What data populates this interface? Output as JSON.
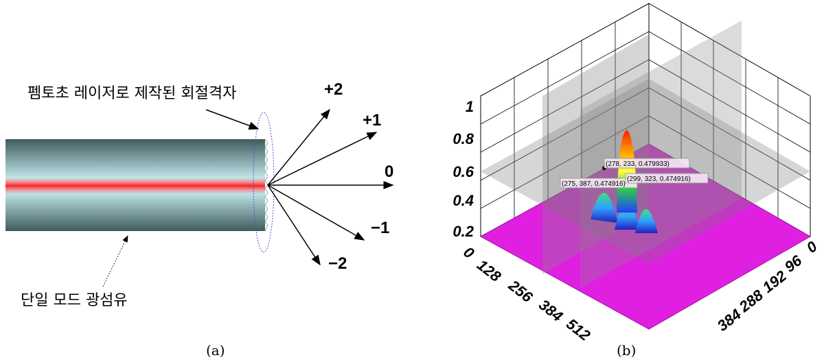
{
  "panel_a": {
    "grating_label": "펨토초 레이저로 제작된 회절격자",
    "fiber_label": "단일 모드 광섬유",
    "orders": [
      "+2",
      "+1",
      "0",
      "−1",
      "−2"
    ],
    "caption": "(a)"
  },
  "panel_b": {
    "z_ticks": [
      "1",
      "0.8",
      "0.6",
      "0.4",
      "0.2"
    ],
    "x_ticks": [
      "0",
      "128",
      "256",
      "384",
      "512"
    ],
    "y_ticks": [
      "0",
      "96",
      "192",
      "288",
      "384"
    ],
    "annotations": [
      "(278, 233, 0.479933)",
      "(275, 387, 0.474916)",
      "(299, 323, 0.474916)"
    ],
    "caption": "(b)"
  }
}
